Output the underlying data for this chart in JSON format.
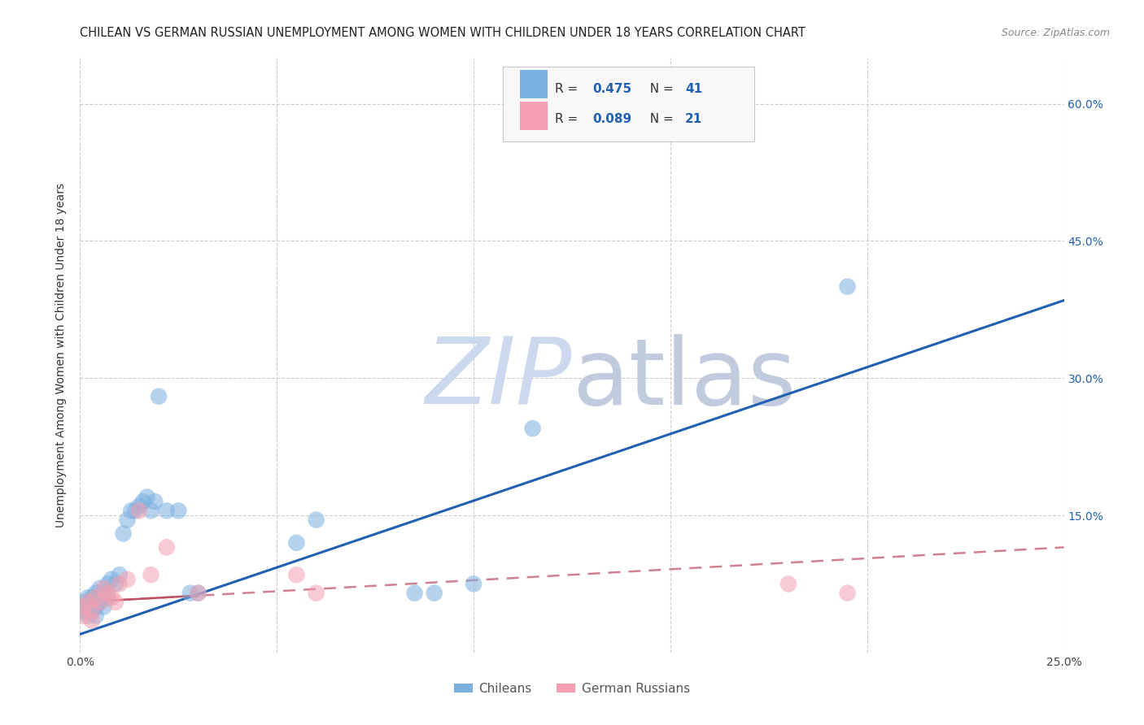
{
  "title": "CHILEAN VS GERMAN RUSSIAN UNEMPLOYMENT AMONG WOMEN WITH CHILDREN UNDER 18 YEARS CORRELATION CHART",
  "source": "Source: ZipAtlas.com",
  "ylabel": "Unemployment Among Women with Children Under 18 years",
  "xlim": [
    0.0,
    0.25
  ],
  "ylim": [
    0.0,
    0.65
  ],
  "xtick_labels": [
    "0.0%",
    "",
    "",
    "",
    "",
    "25.0%"
  ],
  "xtick_vals": [
    0.0,
    0.05,
    0.1,
    0.15,
    0.2,
    0.25
  ],
  "ytick_labels": [
    "15.0%",
    "30.0%",
    "45.0%",
    "60.0%"
  ],
  "ytick_vals": [
    0.15,
    0.3,
    0.45,
    0.6
  ],
  "chilean_scatter_x": [
    0.001,
    0.001,
    0.002,
    0.002,
    0.002,
    0.003,
    0.003,
    0.003,
    0.004,
    0.004,
    0.004,
    0.005,
    0.005,
    0.006,
    0.006,
    0.007,
    0.007,
    0.008,
    0.009,
    0.01,
    0.011,
    0.012,
    0.013,
    0.014,
    0.015,
    0.016,
    0.017,
    0.018,
    0.019,
    0.02,
    0.022,
    0.025,
    0.028,
    0.03,
    0.055,
    0.06,
    0.085,
    0.09,
    0.1,
    0.115,
    0.195
  ],
  "chilean_scatter_y": [
    0.055,
    0.045,
    0.06,
    0.05,
    0.04,
    0.06,
    0.055,
    0.045,
    0.065,
    0.05,
    0.04,
    0.07,
    0.055,
    0.065,
    0.05,
    0.075,
    0.06,
    0.08,
    0.075,
    0.085,
    0.13,
    0.145,
    0.155,
    0.155,
    0.16,
    0.165,
    0.17,
    0.155,
    0.165,
    0.28,
    0.155,
    0.155,
    0.065,
    0.065,
    0.12,
    0.145,
    0.065,
    0.065,
    0.075,
    0.245,
    0.4
  ],
  "german_russian_scatter_x": [
    0.001,
    0.001,
    0.002,
    0.003,
    0.003,
    0.004,
    0.005,
    0.006,
    0.007,
    0.008,
    0.009,
    0.01,
    0.012,
    0.015,
    0.018,
    0.022,
    0.03,
    0.055,
    0.06,
    0.18,
    0.195
  ],
  "german_russian_scatter_y": [
    0.05,
    0.04,
    0.055,
    0.045,
    0.035,
    0.06,
    0.055,
    0.07,
    0.065,
    0.06,
    0.055,
    0.075,
    0.08,
    0.155,
    0.085,
    0.115,
    0.065,
    0.085,
    0.065,
    0.075,
    0.065
  ],
  "chilean_line_x": [
    0.0,
    0.25
  ],
  "chilean_line_y": [
    0.02,
    0.385
  ],
  "german_russian_line_x": [
    0.0,
    0.25
  ],
  "german_russian_line_y": [
    0.055,
    0.115
  ],
  "scatter_color_blue": "#7ab0e0",
  "scatter_color_pink": "#f4a0b0",
  "line_color_blue": "#2060b0",
  "line_color_pink": "#c05060",
  "line_color_pink_dashed": "#d08090",
  "background_color": "#ffffff",
  "watermark_zip_color": "#ccd8ee",
  "watermark_atlas_color": "#c0ccde",
  "legend_label_chilean": "Chileans",
  "legend_label_german": "German Russians",
  "legend_r1": "0.475",
  "legend_n1": "41",
  "legend_r2": "0.089",
  "legend_n2": "21",
  "title_fontsize": 10.5,
  "source_fontsize": 9,
  "axis_label_fontsize": 10,
  "tick_fontsize": 10,
  "legend_fontsize": 11
}
